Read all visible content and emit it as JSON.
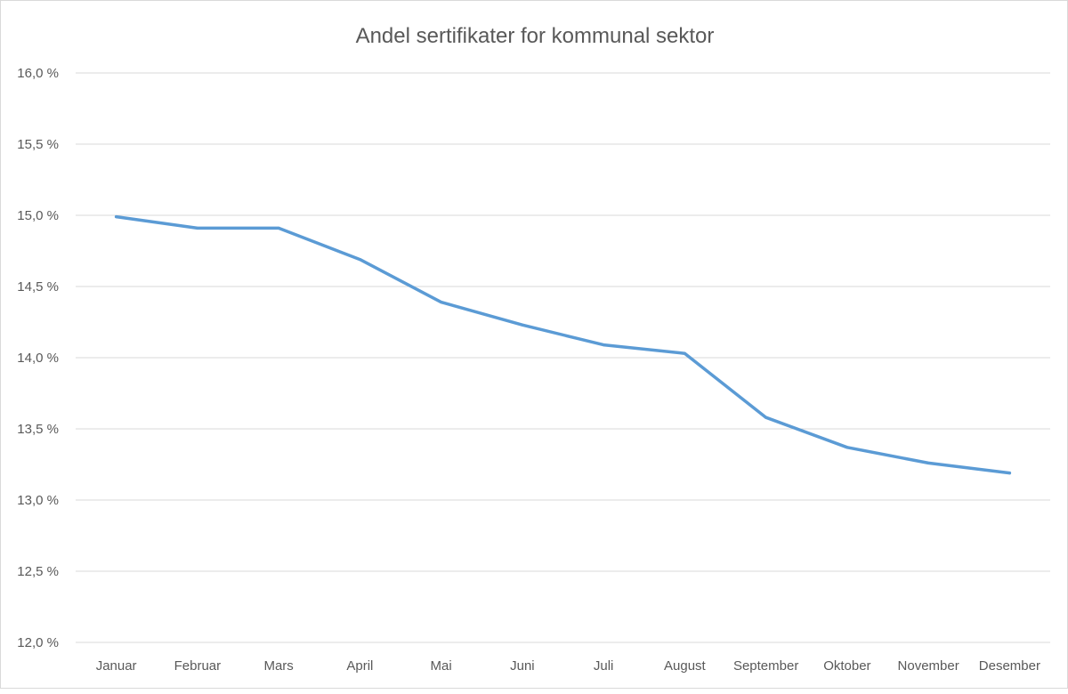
{
  "chart_data": {
    "type": "line",
    "title": "Andel sertifikater for kommunal sektor",
    "xlabel": "",
    "ylabel": "",
    "categories": [
      "Januar",
      "Februar",
      "Mars",
      "April",
      "Mai",
      "Juni",
      "Juli",
      "August",
      "September",
      "Oktober",
      "November",
      "Desember"
    ],
    "series": [
      {
        "values": [
          14.99,
          14.91,
          14.91,
          14.69,
          14.39,
          14.23,
          14.09,
          14.03,
          13.58,
          13.37,
          13.26,
          13.19
        ]
      }
    ],
    "ylim": [
      12.0,
      16.0
    ],
    "yticks": [
      12.0,
      12.5,
      13.0,
      13.5,
      14.0,
      14.5,
      15.0,
      15.5,
      16.0
    ],
    "ytick_labels": [
      "12,0 %",
      "12,5 %",
      "13,0 %",
      "13,5 %",
      "14,0 %",
      "14,5 %",
      "15,0 %",
      "15,5 %",
      "16,0 %"
    ],
    "grid": true,
    "legend": "none",
    "colors": {
      "line": "#5b9bd5",
      "grid": "#d9d9d9",
      "text": "#595959"
    }
  }
}
